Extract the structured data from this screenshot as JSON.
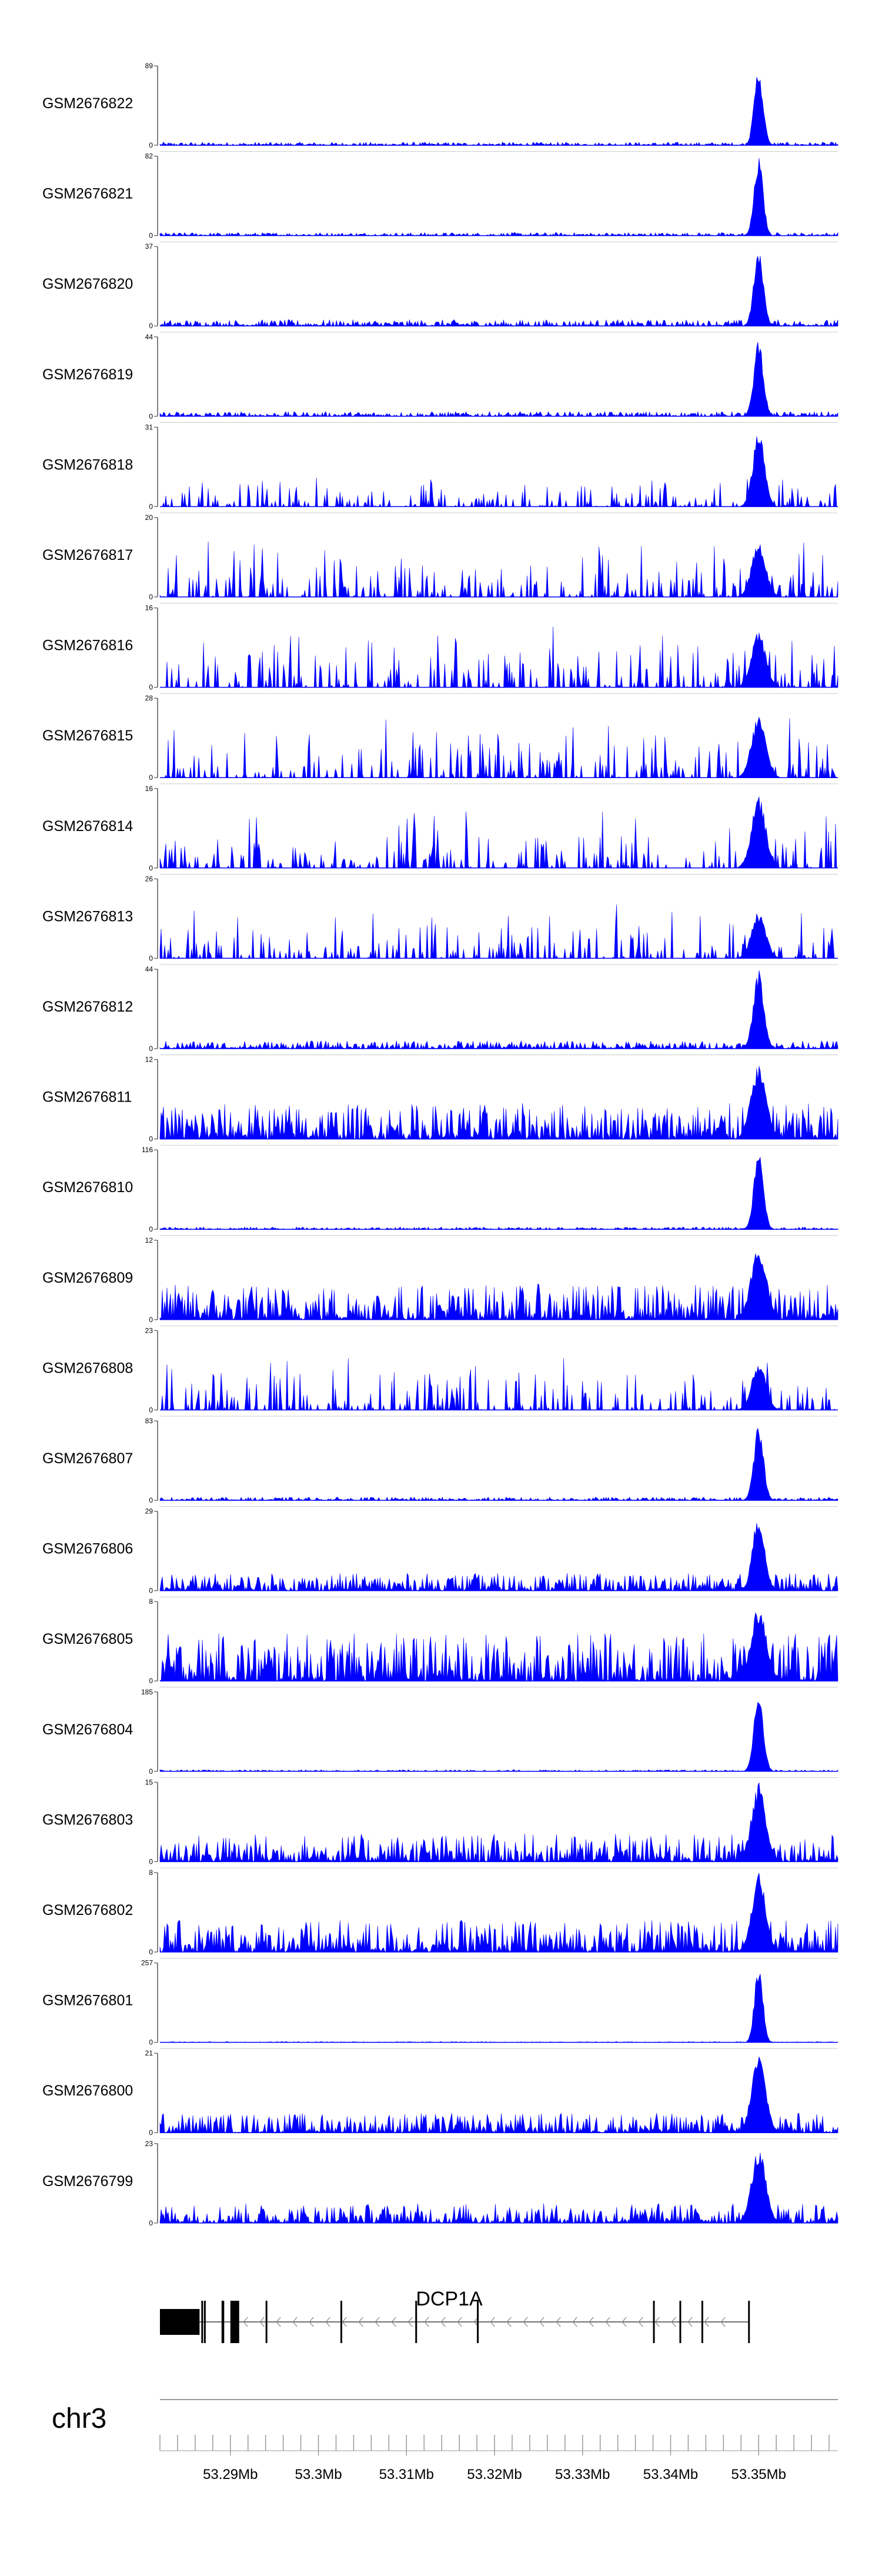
{
  "chart_data": {
    "type": "area",
    "title": "",
    "xlabel": "",
    "ylabel": "",
    "chromosome": "chr3",
    "xlim": [
      53282000,
      53359000
    ],
    "x_ticks": [
      "53.29Mb",
      "53.3Mb",
      "53.31Mb",
      "53.32Mb",
      "53.33Mb",
      "53.34Mb",
      "53.35Mb"
    ],
    "x_tick_values": [
      53290000,
      53300000,
      53310000,
      53320000,
      53330000,
      53340000,
      53350000
    ],
    "peak_position": 53350000,
    "gene": {
      "name": "DCP1A",
      "start": 53282000,
      "end": 53349000,
      "strand": "-",
      "exons": [
        [
          53282000,
          53286500
        ],
        [
          53286700,
          53286900
        ],
        [
          53287000,
          53287200
        ],
        [
          53289000,
          53289300
        ],
        [
          53290000,
          53291000
        ],
        [
          53294000,
          53294200
        ],
        [
          53302500,
          53302700
        ],
        [
          53311000,
          53311200
        ],
        [
          53318000,
          53318200
        ],
        [
          53338000,
          53338200
        ],
        [
          53341000,
          53341200
        ],
        [
          53343500,
          53343700
        ],
        [
          53348800,
          53349000
        ]
      ]
    },
    "series": [
      {
        "name": "GSM2676822",
        "ymax": 89,
        "ymin": 0,
        "noise": 0.04,
        "peak": 1.0,
        "peak_width": 0.35,
        "spiky": false
      },
      {
        "name": "GSM2676821",
        "ymax": 82,
        "ymin": 0,
        "noise": 0.04,
        "peak": 1.0,
        "peak_width": 0.35,
        "spiky": false
      },
      {
        "name": "GSM2676820",
        "ymax": 37,
        "ymin": 0,
        "noise": 0.08,
        "peak": 1.0,
        "peak_width": 0.4,
        "spiky": false
      },
      {
        "name": "GSM2676819",
        "ymax": 44,
        "ymin": 0,
        "noise": 0.06,
        "peak": 1.0,
        "peak_width": 0.4,
        "spiky": false
      },
      {
        "name": "GSM2676818",
        "ymax": 31,
        "ymin": 0,
        "noise": 0.3,
        "peak": 0.95,
        "peak_width": 0.6,
        "spiky": true
      },
      {
        "name": "GSM2676817",
        "ymax": 20,
        "ymin": 0,
        "noise": 0.55,
        "peak": 0.7,
        "peak_width": 0.8,
        "spiky": true
      },
      {
        "name": "GSM2676816",
        "ymax": 16,
        "ymin": 0,
        "noise": 0.6,
        "peak": 0.7,
        "peak_width": 0.8,
        "spiky": true
      },
      {
        "name": "GSM2676815",
        "ymax": 28,
        "ymin": 0,
        "noise": 0.55,
        "peak": 0.8,
        "peak_width": 0.8,
        "spiky": true
      },
      {
        "name": "GSM2676814",
        "ymax": 16,
        "ymin": 0,
        "noise": 0.55,
        "peak": 0.9,
        "peak_width": 0.8,
        "spiky": true
      },
      {
        "name": "GSM2676813",
        "ymax": 26,
        "ymin": 0,
        "noise": 0.5,
        "peak": 0.6,
        "peak_width": 0.8,
        "spiky": true
      },
      {
        "name": "GSM2676812",
        "ymax": 44,
        "ymin": 0,
        "noise": 0.1,
        "peak": 1.0,
        "peak_width": 0.5,
        "spiky": false
      },
      {
        "name": "GSM2676811",
        "ymax": 12,
        "ymin": 0,
        "noise": 0.45,
        "peak": 0.95,
        "peak_width": 0.9,
        "spiky": false
      },
      {
        "name": "GSM2676810",
        "ymax": 116,
        "ymin": 0,
        "noise": 0.03,
        "peak": 1.0,
        "peak_width": 0.4,
        "spiky": false
      },
      {
        "name": "GSM2676809",
        "ymax": 12,
        "ymin": 0,
        "noise": 0.45,
        "peak": 0.95,
        "peak_width": 0.9,
        "spiky": false
      },
      {
        "name": "GSM2676808",
        "ymax": 23,
        "ymin": 0,
        "noise": 0.55,
        "peak": 0.6,
        "peak_width": 0.8,
        "spiky": true
      },
      {
        "name": "GSM2676807",
        "ymax": 83,
        "ymin": 0,
        "noise": 0.04,
        "peak": 1.0,
        "peak_width": 0.4,
        "spiky": false
      },
      {
        "name": "GSM2676806",
        "ymax": 29,
        "ymin": 0,
        "noise": 0.22,
        "peak": 1.0,
        "peak_width": 0.6,
        "spiky": false
      },
      {
        "name": "GSM2676805",
        "ymax": 8,
        "ymin": 0,
        "noise": 0.6,
        "peak": 0.95,
        "peak_width": 0.9,
        "spiky": false
      },
      {
        "name": "GSM2676804",
        "ymax": 185,
        "ymin": 0,
        "noise": 0.02,
        "peak": 1.0,
        "peak_width": 0.4,
        "spiky": false
      },
      {
        "name": "GSM2676803",
        "ymax": 15,
        "ymin": 0,
        "noise": 0.35,
        "peak": 1.0,
        "peak_width": 0.8,
        "spiky": false
      },
      {
        "name": "GSM2676802",
        "ymax": 8,
        "ymin": 0,
        "noise": 0.4,
        "peak": 1.0,
        "peak_width": 0.8,
        "spiky": false
      },
      {
        "name": "GSM2676801",
        "ymax": 257,
        "ymin": 0,
        "noise": 0.01,
        "peak": 1.0,
        "peak_width": 0.3,
        "spiky": false
      },
      {
        "name": "GSM2676800",
        "ymax": 21,
        "ymin": 0,
        "noise": 0.25,
        "peak": 1.0,
        "peak_width": 0.8,
        "spiky": false
      },
      {
        "name": "GSM2676799",
        "ymax": 23,
        "ymin": 0,
        "noise": 0.25,
        "peak": 0.95,
        "peak_width": 0.8,
        "spiky": false
      }
    ],
    "colors": {
      "signal": "#0000ff",
      "axis": "#444444",
      "gene": "#000000",
      "intron_arrow": "#888888"
    }
  }
}
